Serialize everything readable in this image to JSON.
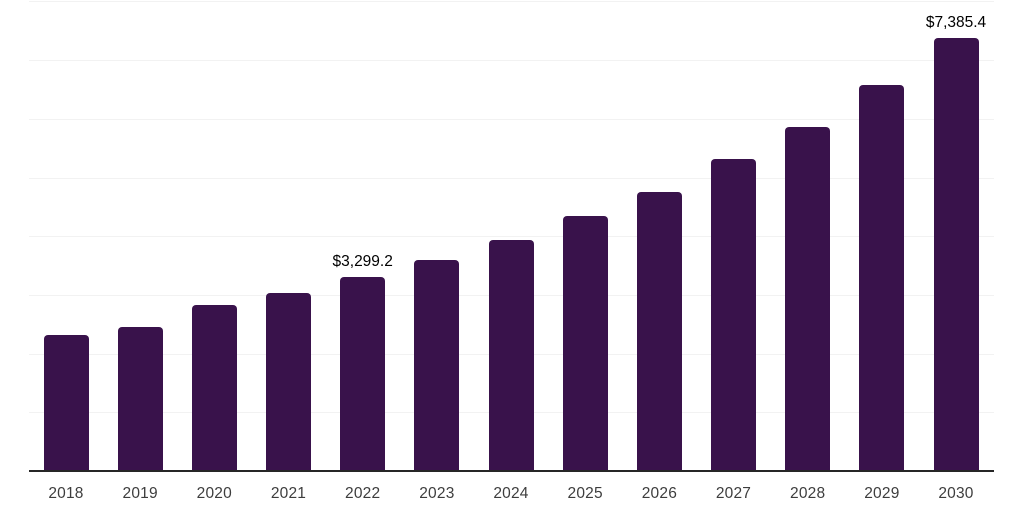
{
  "chart_data": {
    "type": "bar",
    "title": "",
    "xlabel": "",
    "ylabel": "",
    "categories": [
      "2018",
      "2019",
      "2020",
      "2021",
      "2022",
      "2023",
      "2024",
      "2025",
      "2026",
      "2027",
      "2028",
      "2029",
      "2030"
    ],
    "values": [
      2320,
      2455,
      2830,
      3035,
      3299.2,
      3600,
      3930,
      4345,
      4755,
      5310,
      5860,
      6580,
      7385.4
    ],
    "value_labels": [
      {
        "category": "2022",
        "text": "$3,299.2"
      },
      {
        "category": "2030",
        "text": "$7,385.4"
      }
    ],
    "ylim": [
      0,
      8000
    ],
    "gridline_interval": 1000,
    "grid": true,
    "legend": "none",
    "y_axis_tick_labels": "none",
    "colors": {
      "bar": "#39124b",
      "gridline": "#f2f2f2",
      "axis_line": "#262626",
      "axis_label": "#3d3d3d",
      "value_label": "#000000",
      "background": "#ffffff"
    }
  }
}
